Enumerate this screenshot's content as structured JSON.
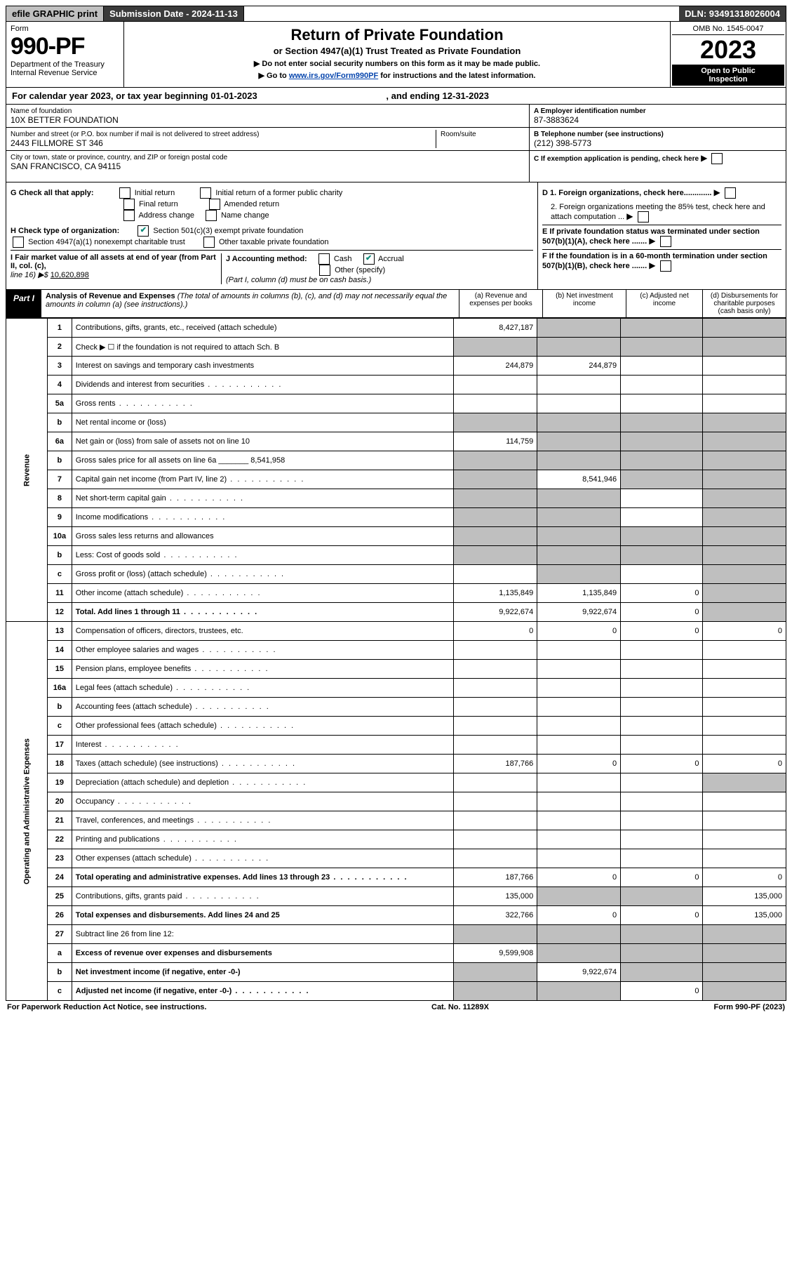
{
  "topbar": {
    "efile": "efile GRAPHIC print",
    "submission": "Submission Date - 2024-11-13",
    "dln": "DLN: 93491318026004"
  },
  "form": {
    "word": "Form",
    "number": "990-PF",
    "dept": "Department of the Treasury",
    "irs": "Internal Revenue Service"
  },
  "title": {
    "main": "Return of Private Foundation",
    "sub": "or Section 4947(a)(1) Trust Treated as Private Foundation",
    "note1": "▶ Do not enter social security numbers on this form as it may be made public.",
    "note2_pre": "▶ Go to ",
    "note2_link": "www.irs.gov/Form990PF",
    "note2_post": " for instructions and the latest information."
  },
  "year": {
    "omb": "OMB No. 1545-0047",
    "year": "2023",
    "inspect1": "Open to Public",
    "inspect2": "Inspection"
  },
  "calyear": {
    "text": "For calendar year 2023, or tax year beginning 01-01-2023",
    "ending": ", and ending 12-31-2023"
  },
  "foundation": {
    "name_lbl": "Name of foundation",
    "name": "10X BETTER FOUNDATION",
    "addr_lbl": "Number and street (or P.O. box number if mail is not delivered to street address)",
    "addr": "2443 FILLMORE ST 346",
    "room_lbl": "Room/suite",
    "city_lbl": "City or town, state or province, country, and ZIP or foreign postal code",
    "city": "SAN FRANCISCO, CA  94115"
  },
  "right": {
    "a_lbl": "A Employer identification number",
    "a_val": "87-3883624",
    "b_lbl": "B Telephone number (see instructions)",
    "b_val": "(212) 398-5773",
    "c_lbl": "C If exemption application is pending, check here",
    "d1": "D 1. Foreign organizations, check here.............",
    "d2": "2. Foreign organizations meeting the 85% test, check here and attach computation ...",
    "e": "E  If private foundation status was terminated under section 507(b)(1)(A), check here .......",
    "f": "F  If the foundation is in a 60-month termination under section 507(b)(1)(B), check here ......."
  },
  "g": {
    "lbl": "G Check all that apply:",
    "opts": [
      "Initial return",
      "Final return",
      "Address change",
      "Initial return of a former public charity",
      "Amended return",
      "Name change"
    ]
  },
  "h": {
    "lbl": "H Check type of organization:",
    "opt1": "Section 501(c)(3) exempt private foundation",
    "opt2": "Section 4947(a)(1) nonexempt charitable trust",
    "opt3": "Other taxable private foundation"
  },
  "i": {
    "lbl": "I Fair market value of all assets at end of year (from Part II, col. (c),",
    "line": "line 16) ▶$",
    "val": "10,620,898"
  },
  "j": {
    "lbl": "J Accounting method:",
    "cash": "Cash",
    "accrual": "Accrual",
    "other": "Other (specify)",
    "note": "(Part I, column (d) must be on cash basis.)"
  },
  "part1": {
    "lbl": "Part I",
    "title": "Analysis of Revenue and Expenses",
    "note": "(The total of amounts in columns (b), (c), and (d) may not necessarily equal the amounts in column (a) (see instructions).)",
    "ca": "(a)   Revenue and expenses per books",
    "cb": "(b)   Net investment income",
    "cc": "(c)   Adjusted net income",
    "cd": "(d)  Disbursements for charitable purposes (cash basis only)"
  },
  "side": {
    "rev": "Revenue",
    "exp": "Operating and Administrative Expenses"
  },
  "rows": [
    {
      "n": "1",
      "d": "Contributions, gifts, grants, etc., received (attach schedule)",
      "a": "8,427,187",
      "bs": true,
      "cs": true,
      "ds": true
    },
    {
      "n": "2",
      "d": "Check ▶ ☐ if the foundation is not required to attach Sch. B",
      "dk": true,
      "as": true,
      "bs": true,
      "cs": true,
      "ds": true
    },
    {
      "n": "3",
      "d": "Interest on savings and temporary cash investments",
      "a": "244,879",
      "b": "244,879"
    },
    {
      "n": "4",
      "d": "Dividends and interest from securities",
      "dots": true
    },
    {
      "n": "5a",
      "d": "Gross rents",
      "dots": true
    },
    {
      "n": "b",
      "d": "Net rental income or (loss)",
      "as": true,
      "bs": true,
      "cs": true,
      "ds": true
    },
    {
      "n": "6a",
      "d": "Net gain or (loss) from sale of assets not on line 10",
      "a": "114,759",
      "bs": true,
      "cs": true,
      "ds": true
    },
    {
      "n": "b",
      "d": "Gross sales price for all assets on line 6a _______ 8,541,958",
      "as": true,
      "bs": true,
      "cs": true,
      "ds": true
    },
    {
      "n": "7",
      "d": "Capital gain net income (from Part IV, line 2)",
      "dots": true,
      "as": true,
      "b": "8,541,946",
      "cs": true,
      "ds": true
    },
    {
      "n": "8",
      "d": "Net short-term capital gain",
      "dots": true,
      "as": true,
      "bs": true,
      "ds": true
    },
    {
      "n": "9",
      "d": "Income modifications",
      "dots": true,
      "as": true,
      "bs": true,
      "ds": true
    },
    {
      "n": "10a",
      "d": "Gross sales less returns and allowances",
      "as": true,
      "bs": true,
      "cs": true,
      "ds": true
    },
    {
      "n": "b",
      "d": "Less: Cost of goods sold",
      "dots": true,
      "as": true,
      "bs": true,
      "cs": true,
      "ds": true
    },
    {
      "n": "c",
      "d": "Gross profit or (loss) (attach schedule)",
      "dots": true,
      "bs": true,
      "ds": true
    },
    {
      "n": "11",
      "d": "Other income (attach schedule)",
      "dots": true,
      "a": "1,135,849",
      "b": "1,135,849",
      "c": "0",
      "ds": true
    },
    {
      "n": "12",
      "d": "Total. Add lines 1 through 11",
      "dots": true,
      "bold": true,
      "a": "9,922,674",
      "b": "9,922,674",
      "c": "0",
      "ds": true
    },
    {
      "n": "13",
      "d": "Compensation of officers, directors, trustees, etc.",
      "a": "0",
      "b": "0",
      "c": "0",
      "dv": "0"
    },
    {
      "n": "14",
      "d": "Other employee salaries and wages",
      "dots": true
    },
    {
      "n": "15",
      "d": "Pension plans, employee benefits",
      "dots": true
    },
    {
      "n": "16a",
      "d": "Legal fees (attach schedule)",
      "dots": true
    },
    {
      "n": "b",
      "d": "Accounting fees (attach schedule)",
      "dots": true
    },
    {
      "n": "c",
      "d": "Other professional fees (attach schedule)",
      "dots": true
    },
    {
      "n": "17",
      "d": "Interest",
      "dots": true
    },
    {
      "n": "18",
      "d": "Taxes (attach schedule) (see instructions)",
      "dots": true,
      "a": "187,766",
      "b": "0",
      "c": "0",
      "dv": "0"
    },
    {
      "n": "19",
      "d": "Depreciation (attach schedule) and depletion",
      "dots": true,
      "ds": true
    },
    {
      "n": "20",
      "d": "Occupancy",
      "dots": true
    },
    {
      "n": "21",
      "d": "Travel, conferences, and meetings",
      "dots": true
    },
    {
      "n": "22",
      "d": "Printing and publications",
      "dots": true
    },
    {
      "n": "23",
      "d": "Other expenses (attach schedule)",
      "dots": true
    },
    {
      "n": "24",
      "d": "Total operating and administrative expenses. Add lines 13 through 23",
      "dots": true,
      "bold": true,
      "a": "187,766",
      "b": "0",
      "c": "0",
      "dv": "0"
    },
    {
      "n": "25",
      "d": "Contributions, gifts, grants paid",
      "dots": true,
      "a": "135,000",
      "bs": true,
      "cs": true,
      "dv": "135,000"
    },
    {
      "n": "26",
      "d": "Total expenses and disbursements. Add lines 24 and 25",
      "bold": true,
      "a": "322,766",
      "b": "0",
      "c": "0",
      "dv": "135,000"
    },
    {
      "n": "27",
      "d": "Subtract line 26 from line 12:",
      "as": true,
      "bs": true,
      "cs": true,
      "ds": true
    },
    {
      "n": "a",
      "d": "Excess of revenue over expenses and disbursements",
      "bold": true,
      "a": "9,599,908",
      "bs": true,
      "cs": true,
      "ds": true
    },
    {
      "n": "b",
      "d": "Net investment income (if negative, enter -0-)",
      "bold": true,
      "as": true,
      "b": "9,922,674",
      "cs": true,
      "ds": true
    },
    {
      "n": "c",
      "d": "Adjusted net income (if negative, enter -0-)",
      "bold": true,
      "dots": true,
      "as": true,
      "bs": true,
      "c": "0",
      "ds": true
    }
  ],
  "footer": {
    "left": "For Paperwork Reduction Act Notice, see instructions.",
    "mid": "Cat. No. 11289X",
    "right": "Form 990-PF (2023)"
  }
}
